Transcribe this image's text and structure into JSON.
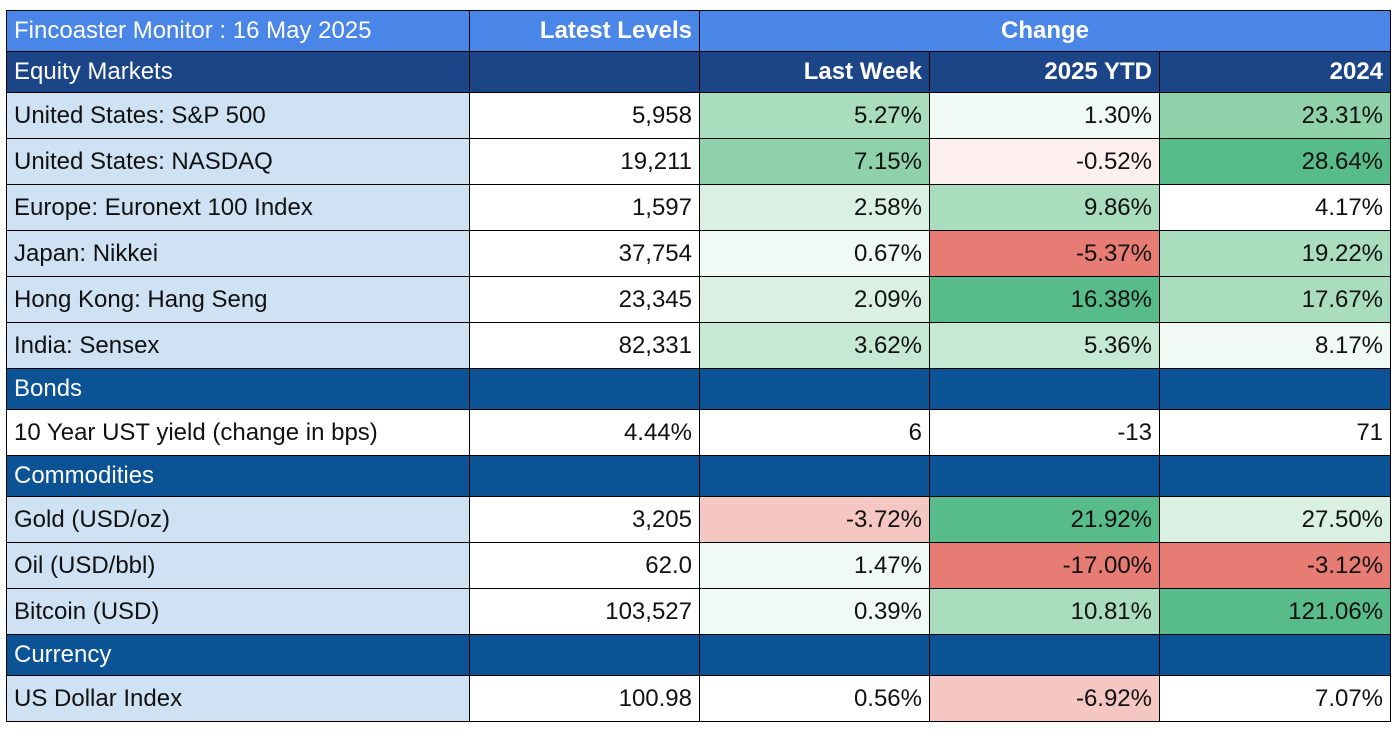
{
  "header": {
    "title": "Fincoaster Monitor : 16 May 2025",
    "latest_levels": "Latest Levels",
    "change": "Change"
  },
  "columns": {
    "last_week": "Last Week",
    "ytd": "2025 YTD",
    "year": "2024"
  },
  "sections": {
    "equity": "Equity Markets",
    "bonds": "Bonds",
    "commodities": "Commodities",
    "currency": "Currency"
  },
  "rows": {
    "sp500": {
      "name": "United States: S&P 500",
      "level": "5,958",
      "last_week": "5.27%",
      "ytd": "1.30%",
      "year": "23.31%"
    },
    "nasdaq": {
      "name": "United States: NASDAQ",
      "level": "19,211",
      "last_week": "7.15%",
      "ytd": "-0.52%",
      "year": "28.64%"
    },
    "euronext": {
      "name": "Europe: Euronext 100 Index",
      "level": "1,597",
      "last_week": "2.58%",
      "ytd": "9.86%",
      "year": "4.17%"
    },
    "nikkei": {
      "name": "Japan: Nikkei",
      "level": "37,754",
      "last_week": "0.67%",
      "ytd": "-5.37%",
      "year": "19.22%"
    },
    "hangseng": {
      "name": "Hong Kong: Hang Seng",
      "level": "23,345",
      "last_week": "2.09%",
      "ytd": "16.38%",
      "year": "17.67%"
    },
    "sensex": {
      "name": "India: Sensex",
      "level": "82,331",
      "last_week": "3.62%",
      "ytd": "5.36%",
      "year": "8.17%"
    },
    "ust10": {
      "name": "10 Year UST yield (change in bps)",
      "level": "4.44%",
      "last_week": "6",
      "ytd": "-13",
      "year": "71"
    },
    "gold": {
      "name": "Gold (USD/oz)",
      "level": "3,205",
      "last_week": "-3.72%",
      "ytd": "21.92%",
      "year": "27.50%"
    },
    "oil": {
      "name": "Oil (USD/bbl)",
      "level": "62.0",
      "last_week": "1.47%",
      "ytd": "-17.00%",
      "year": "-3.12%"
    },
    "bitcoin": {
      "name": "Bitcoin (USD)",
      "level": "103,527",
      "last_week": "0.39%",
      "ytd": "10.81%",
      "year": "121.06%"
    },
    "dxy": {
      "name": "US Dollar Index",
      "level": "100.98",
      "last_week": "0.56%",
      "ytd": "-6.92%",
      "year": "7.07%"
    }
  },
  "colors": {
    "title_bg": "#4a86e8",
    "section_bg": "#1c4587",
    "label_bg": "#cfe2f3",
    "strong_green": "#57bb8a",
    "strong_red": "#e67c73"
  }
}
